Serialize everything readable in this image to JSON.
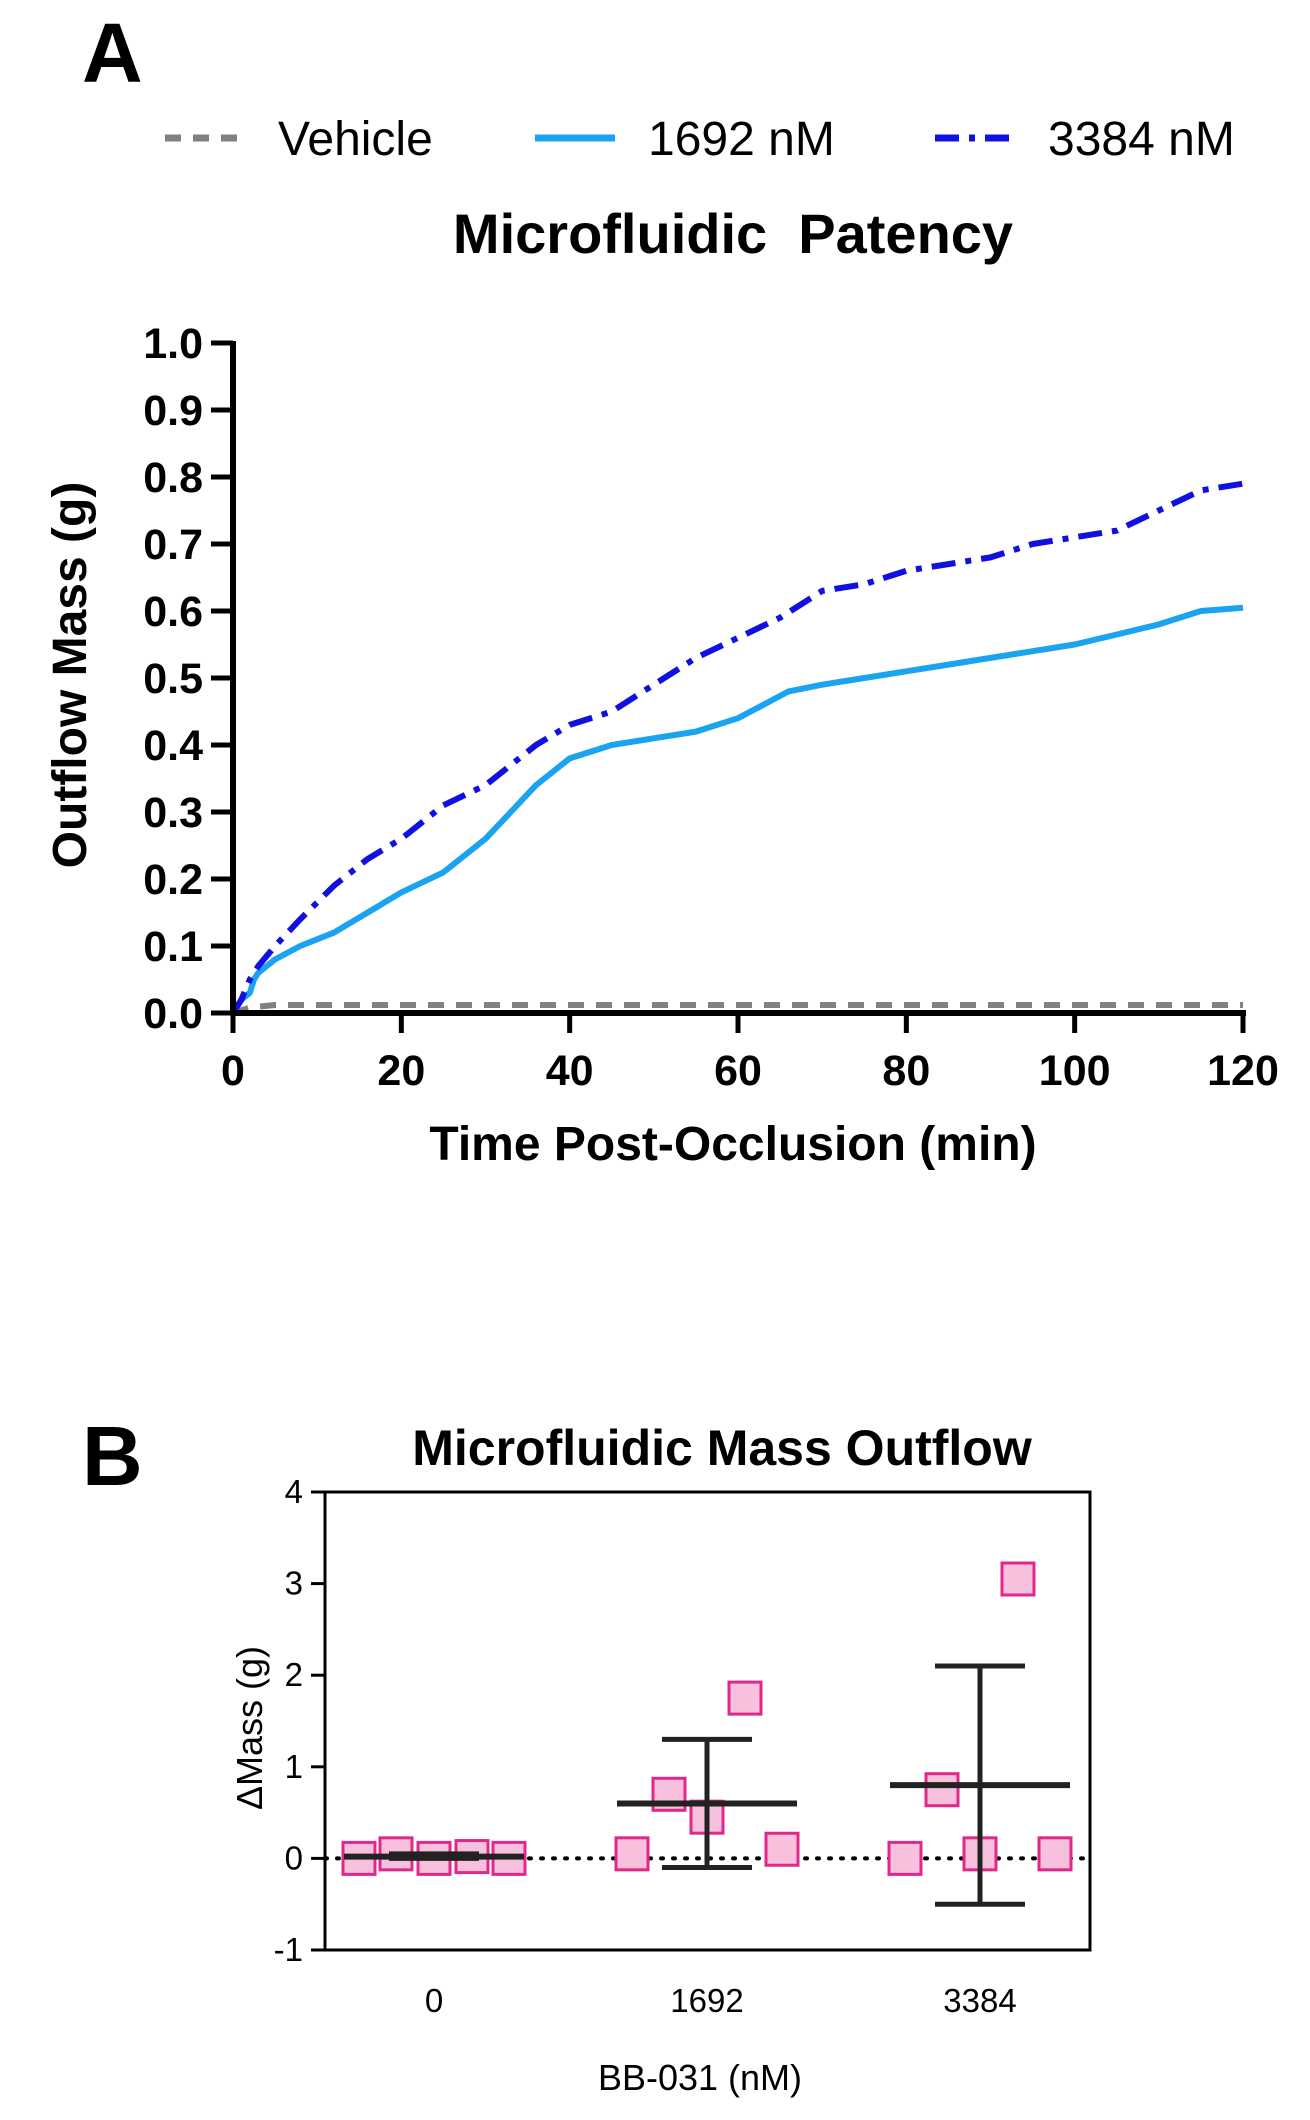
{
  "panel_a": {
    "letter": "A",
    "legend": [
      {
        "label": "Vehicle",
        "color": "#808080",
        "style": "dashed"
      },
      {
        "label": "1692 nM",
        "color": "#1aa3f0",
        "style": "solid"
      },
      {
        "label": "3384 nM",
        "color": "#1010e0",
        "style": "dashdot"
      }
    ]
  },
  "panel_b": {
    "letter": "B"
  },
  "chart_data": [
    {
      "type": "line",
      "title": "Microfluidic  Patency",
      "xlabel": "Time Post-Occlusion (min)",
      "ylabel": "Outflow Mass (g)",
      "xlim": [
        0,
        120
      ],
      "ylim": [
        0,
        1.0
      ],
      "xticks": [
        "0",
        "20",
        "40",
        "60",
        "80",
        "100",
        "120"
      ],
      "yticks": [
        "0.0",
        "0.1",
        "0.2",
        "0.3",
        "0.4",
        "0.5",
        "0.6",
        "0.7",
        "0.8",
        "0.9",
        "1.0"
      ],
      "series": [
        {
          "name": "Vehicle",
          "color": "#808080",
          "style": "dashed",
          "x": [
            0,
            2,
            5,
            120
          ],
          "y": [
            0,
            0.008,
            0.012,
            0.012
          ]
        },
        {
          "name": "1692 nM",
          "color": "#1aa3f0",
          "style": "solid",
          "x": [
            0,
            1,
            2,
            2.5,
            3,
            5,
            8,
            12,
            16,
            20,
            25,
            30,
            33,
            36,
            38,
            40,
            45,
            50,
            55,
            60,
            63,
            66,
            70,
            75,
            80,
            85,
            90,
            95,
            100,
            105,
            110,
            115,
            120
          ],
          "y": [
            0,
            0.02,
            0.03,
            0.05,
            0.06,
            0.08,
            0.1,
            0.12,
            0.15,
            0.18,
            0.21,
            0.26,
            0.3,
            0.34,
            0.36,
            0.38,
            0.4,
            0.41,
            0.42,
            0.44,
            0.46,
            0.48,
            0.49,
            0.5,
            0.51,
            0.52,
            0.53,
            0.54,
            0.55,
            0.565,
            0.58,
            0.6,
            0.605
          ]
        },
        {
          "name": "3384 nM",
          "color": "#1010e0",
          "style": "dashdot",
          "x": [
            0,
            1,
            2,
            3,
            5,
            8,
            12,
            16,
            20,
            25,
            30,
            33,
            36,
            40,
            45,
            50,
            55,
            60,
            65,
            70,
            75,
            80,
            85,
            90,
            95,
            100,
            105,
            110,
            115,
            120
          ],
          "y": [
            0,
            0.02,
            0.05,
            0.07,
            0.1,
            0.14,
            0.19,
            0.23,
            0.26,
            0.31,
            0.34,
            0.37,
            0.4,
            0.43,
            0.45,
            0.49,
            0.53,
            0.56,
            0.59,
            0.63,
            0.64,
            0.66,
            0.67,
            0.68,
            0.7,
            0.71,
            0.72,
            0.75,
            0.78,
            0.79
          ]
        }
      ]
    },
    {
      "type": "scatter",
      "title": "Microfluidic Mass Outflow",
      "xlabel": "BB-031 (nM)",
      "ylabel": "ΔMass (g)",
      "categories": [
        "0",
        "1692",
        "3384"
      ],
      "yticks": [
        "-1",
        "0",
        "1",
        "2",
        "3",
        "4"
      ],
      "ylim": [
        -1,
        4
      ],
      "reference_line_y": 0,
      "marker_color": "#e0288c",
      "marker_fill": "#f7c0dc",
      "groups": [
        {
          "category": "0",
          "points": [
            0.0,
            0.05,
            0.0,
            0.02,
            0.0
          ],
          "mean": 0.02,
          "sd_low": 0.0,
          "sd_high": 0.05
        },
        {
          "category": "1692",
          "points": [
            0.05,
            0.7,
            0.45,
            1.75,
            0.1
          ],
          "mean": 0.6,
          "sd_low": -0.1,
          "sd_high": 1.3
        },
        {
          "category": "3384",
          "points": [
            0.0,
            0.75,
            0.05,
            3.05,
            0.05
          ],
          "mean": 0.8,
          "sd_low": -0.5,
          "sd_high": 2.1
        }
      ]
    }
  ]
}
